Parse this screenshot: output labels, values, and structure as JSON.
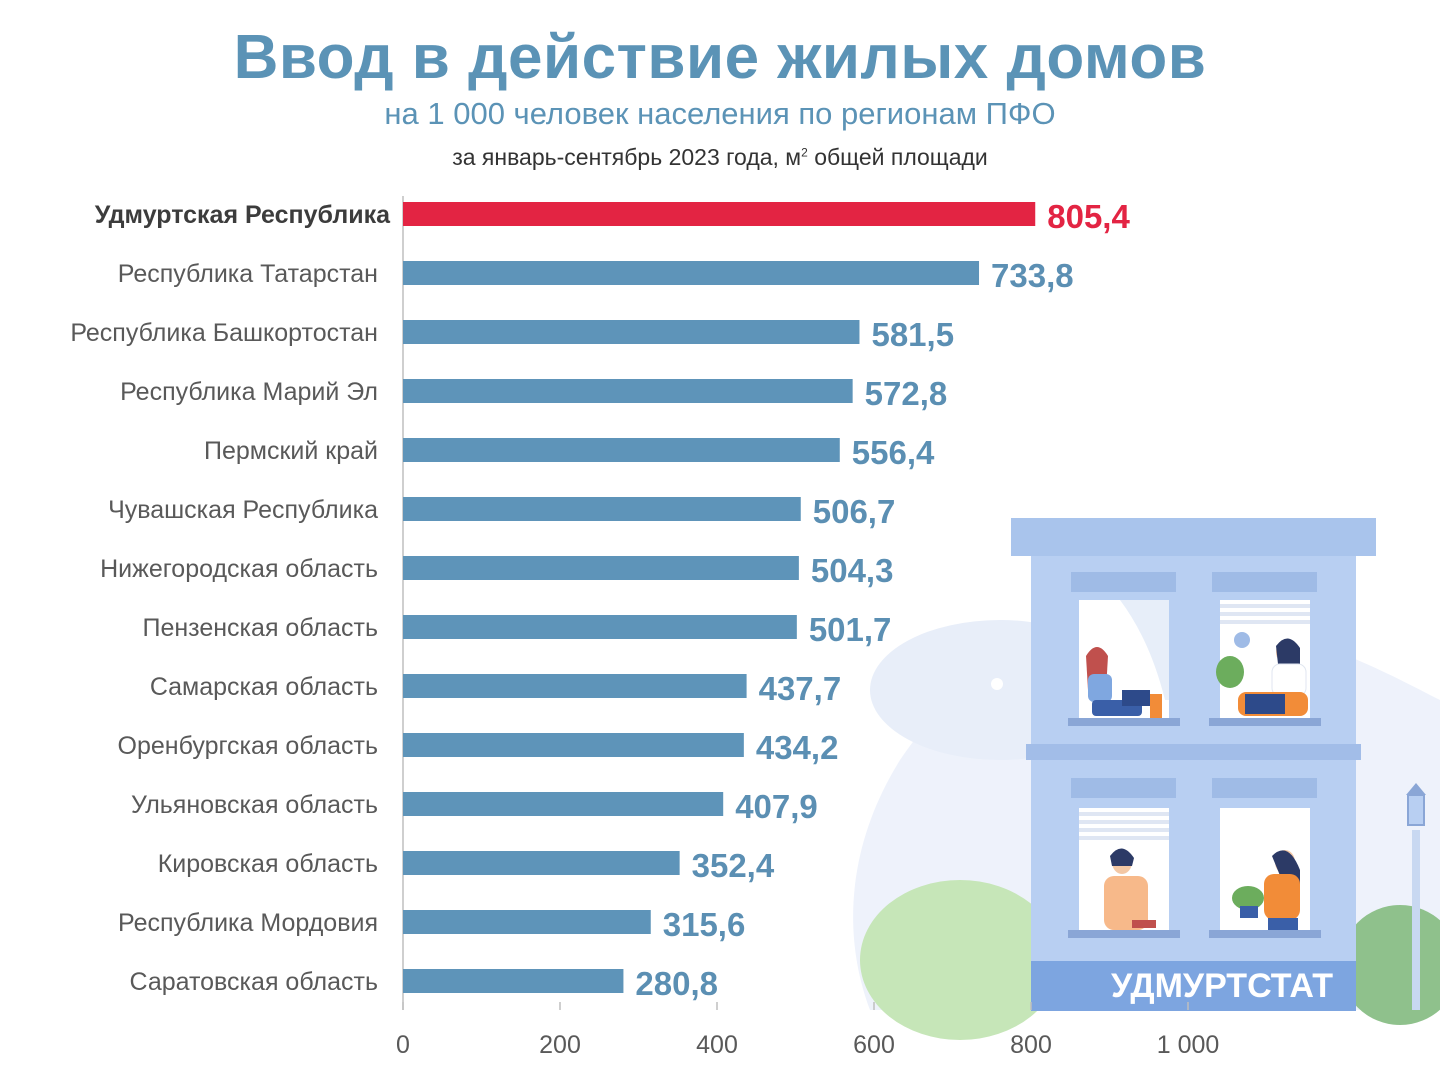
{
  "header": {
    "title": "Ввод в действие жилых домов",
    "subtitle": "на 1 000 человек населения по регионам ПФО",
    "period_main": "за январь-сентябрь 2023 года, м",
    "period_sup": "2",
    "period_tail": " общей площади"
  },
  "brand": {
    "label": "УДМУРТСТАТ"
  },
  "colors": {
    "highlight": "#e32443",
    "bar": "#5e94b9",
    "title": "#5b93b6",
    "value": "#5b8fb3"
  },
  "chart_data": {
    "type": "bar",
    "orientation": "horizontal",
    "categories": [
      "Удмуртская Республика",
      "Республика Татарстан",
      "Республика Башкортостан",
      "Республика Марий Эл",
      "Пермский край",
      "Чувашская Республика",
      "Нижегородская область",
      "Пензенская область",
      "Самарская область",
      "Оренбургская область",
      "Ульяновская область",
      "Кировская область",
      "Республика Мордовия",
      "Саратовская область"
    ],
    "values": [
      805.4,
      733.8,
      581.5,
      572.8,
      556.4,
      506.7,
      504.3,
      501.7,
      437.7,
      434.2,
      407.9,
      352.4,
      315.6,
      280.8
    ],
    "value_labels": [
      "805,4",
      "733,8",
      "581,5",
      "572,8",
      "556,4",
      "506,7",
      "504,3",
      "501,7",
      "437,7",
      "434,2",
      "407,9",
      "352,4",
      "315,6",
      "280,8"
    ],
    "highlight_index": 0,
    "xlim": [
      0,
      1000
    ],
    "x_ticks": [
      0,
      200,
      400,
      600,
      800,
      1000
    ],
    "x_tick_labels": [
      "0",
      "200",
      "400",
      "600",
      "800",
      "1 000"
    ],
    "grid": false
  }
}
